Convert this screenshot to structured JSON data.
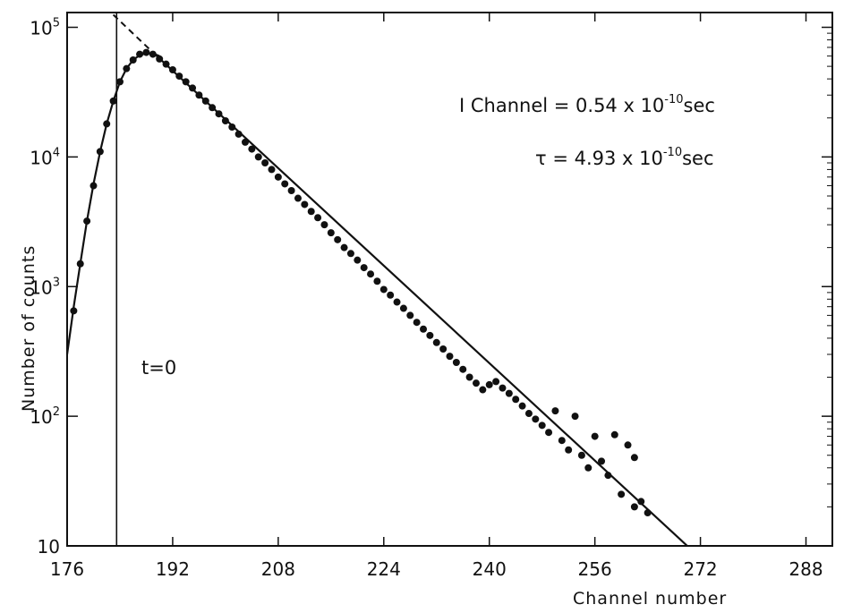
{
  "chart_data": {
    "type": "scatter",
    "title": "",
    "xlabel": "Channel number",
    "ylabel": "Number of counts",
    "xlim": [
      176,
      292
    ],
    "ylim": [
      10,
      130000
    ],
    "yscale": "log",
    "grid": false,
    "x_ticks": [
      176,
      192,
      208,
      224,
      240,
      256,
      272,
      288
    ],
    "x_tick_labels": [
      "176",
      "192",
      "208",
      "224",
      "240",
      "256",
      "272",
      "288"
    ],
    "y_ticks": [
      10,
      100,
      1000,
      10000,
      100000
    ],
    "y_tick_labels": [
      {
        "base": "10",
        "exp": ""
      },
      {
        "base": "10",
        "exp": "2"
      },
      {
        "base": "10",
        "exp": "3"
      },
      {
        "base": "10",
        "exp": "4"
      },
      {
        "base": "10",
        "exp": "5"
      }
    ],
    "annotations": {
      "channel_prefix": "I Channel = 0.54 x 10",
      "channel_exp": "-10",
      "channel_suffix": "sec",
      "tau_prefix": "τ  = 4.93 x 10",
      "tau_exp": "-10",
      "tau_suffix": "sec",
      "t0_label": "t=0"
    },
    "t0_channel": 183.5,
    "points": {
      "x": [
        177,
        178,
        179,
        180,
        181,
        182,
        183,
        184,
        185,
        186,
        187,
        188,
        189,
        190,
        191,
        192,
        193,
        194,
        195,
        196,
        197,
        198,
        199,
        200,
        201,
        202,
        203,
        204,
        205,
        206,
        207,
        208,
        209,
        210,
        211,
        212,
        213,
        214,
        215,
        216,
        217,
        218,
        219,
        220,
        221,
        222,
        223,
        224,
        225,
        226,
        227,
        228,
        229,
        230,
        231,
        232,
        233,
        234,
        235,
        236,
        237,
        238,
        239,
        240,
        241,
        242,
        243,
        244,
        245,
        246,
        247,
        248,
        249,
        250,
        251,
        252,
        253,
        254,
        255,
        256,
        257,
        258,
        259,
        260,
        261,
        262
      ],
      "y": [
        650,
        1500,
        3200,
        6000,
        11000,
        18000,
        27000,
        38000,
        48000,
        56000,
        62000,
        64000,
        62000,
        57000,
        52000,
        47000,
        42000,
        38000,
        34000,
        30000,
        27000,
        24000,
        21500,
        19000,
        17000,
        15000,
        13000,
        11500,
        10000,
        9000,
        8000,
        7000,
        6200,
        5500,
        4800,
        4300,
        3800,
        3400,
        3000,
        2600,
        2300,
        2000,
        1800,
        1600,
        1400,
        1250,
        1100,
        950,
        860,
        760,
        680,
        600,
        530,
        470,
        420,
        370,
        330,
        290,
        260,
        230,
        200,
        180,
        160,
        175,
        185,
        165,
        150,
        135,
        120,
        105,
        95,
        85,
        75,
        110,
        65,
        55,
        100,
        50,
        40,
        70,
        45,
        35,
        72,
        25,
        60,
        48
      ],
      "x_extra": [
        262,
        263,
        264
      ],
      "y_extra": [
        20,
        22,
        18
      ]
    },
    "fit_rise": {
      "x": [
        176,
        177,
        178,
        179,
        180,
        181,
        182,
        183,
        184,
        185,
        186,
        187,
        188,
        189,
        190
      ],
      "y": [
        300,
        700,
        1500,
        3200,
        6200,
        11000,
        18000,
        27000,
        38000,
        48000,
        56000,
        61000,
        63000,
        63000,
        60000
      ]
    },
    "fit_decay": {
      "x_start": 189,
      "y_start": 64000,
      "x_end": 270,
      "y_end": 10
    },
    "fit_extrapolation": {
      "x_start": 183,
      "y_start": 125000,
      "x_end": 189,
      "y_end": 64000
    }
  }
}
